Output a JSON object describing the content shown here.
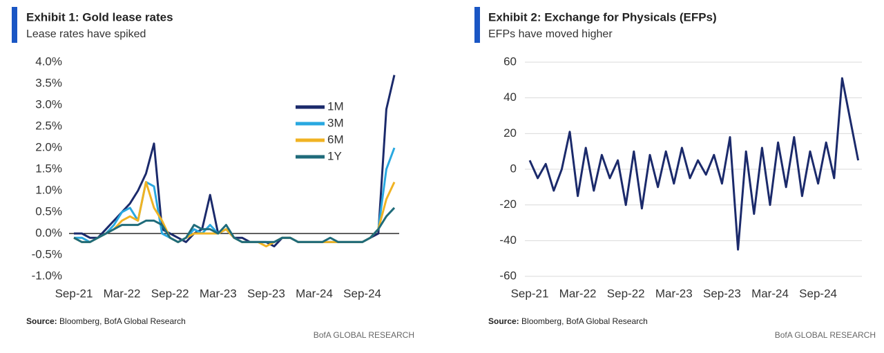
{
  "chart_data": [
    {
      "type": "line",
      "title": "Exhibit 1: Gold lease rates",
      "subtitle": "Lease rates have spiked",
      "x": [
        "Sep-21",
        "Oct-21",
        "Nov-21",
        "Dec-21",
        "Jan-22",
        "Feb-22",
        "Mar-22",
        "Apr-22",
        "May-22",
        "Jun-22",
        "Jul-22",
        "Aug-22",
        "Sep-22",
        "Oct-22",
        "Nov-22",
        "Dec-22",
        "Jan-23",
        "Feb-23",
        "Mar-23",
        "Apr-23",
        "May-23",
        "Jun-23",
        "Jul-23",
        "Aug-23",
        "Sep-23",
        "Oct-23",
        "Nov-23",
        "Dec-23",
        "Jan-24",
        "Feb-24",
        "Mar-24",
        "Apr-24",
        "May-24",
        "Jun-24",
        "Jul-24",
        "Aug-24",
        "Sep-24",
        "Oct-24",
        "Nov-24",
        "Dec-24",
        "Jan-25"
      ],
      "xticks": [
        "Sep-21",
        "Mar-22",
        "Sep-22",
        "Mar-23",
        "Sep-23",
        "Mar-24",
        "Sep-24"
      ],
      "series": [
        {
          "name": "1M",
          "color": "#1b2a6b",
          "values": [
            0,
            0,
            -0.1,
            -0.1,
            0.1,
            0.3,
            0.5,
            0.7,
            1.0,
            1.4,
            2.1,
            0.1,
            0,
            -0.1,
            -0.2,
            0,
            0.1,
            0.9,
            0,
            0.1,
            -0.1,
            -0.1,
            -0.2,
            -0.2,
            -0.2,
            -0.3,
            -0.1,
            -0.1,
            -0.2,
            -0.2,
            -0.2,
            -0.2,
            -0.2,
            -0.2,
            -0.2,
            -0.2,
            -0.2,
            -0.1,
            0,
            2.9,
            3.7
          ]
        },
        {
          "name": "3M",
          "color": "#29a8e0",
          "values": [
            -0.1,
            -0.1,
            -0.2,
            -0.1,
            0,
            0.2,
            0.5,
            0.6,
            0.3,
            1.2,
            1.1,
            0,
            -0.1,
            -0.2,
            -0.1,
            0.1,
            0,
            0.2,
            0,
            0.1,
            -0.1,
            -0.2,
            -0.2,
            -0.2,
            -0.2,
            -0.2,
            -0.1,
            -0.1,
            -0.2,
            -0.2,
            -0.2,
            -0.2,
            -0.2,
            -0.2,
            -0.2,
            -0.2,
            -0.2,
            -0.1,
            0.1,
            1.5,
            2.0
          ]
        },
        {
          "name": "6M",
          "color": "#f0b323",
          "values": [
            -0.1,
            -0.2,
            -0.2,
            -0.1,
            0,
            0.1,
            0.3,
            0.4,
            0.3,
            1.2,
            0.6,
            0.3,
            -0.1,
            -0.2,
            -0.1,
            0,
            0,
            0,
            0,
            0.1,
            -0.1,
            -0.2,
            -0.2,
            -0.2,
            -0.3,
            -0.2,
            -0.1,
            -0.1,
            -0.2,
            -0.2,
            -0.2,
            -0.2,
            -0.2,
            -0.2,
            -0.2,
            -0.2,
            -0.2,
            -0.1,
            0.1,
            0.8,
            1.2
          ]
        },
        {
          "name": "1Y",
          "color": "#1f6b7a",
          "values": [
            -0.1,
            -0.2,
            -0.2,
            -0.1,
            0,
            0.1,
            0.2,
            0.2,
            0.2,
            0.3,
            0.3,
            0.2,
            -0.1,
            -0.2,
            -0.1,
            0.2,
            0.1,
            0.1,
            0,
            0.2,
            -0.1,
            -0.2,
            -0.2,
            -0.2,
            -0.2,
            -0.2,
            -0.1,
            -0.1,
            -0.2,
            -0.2,
            -0.2,
            -0.2,
            -0.1,
            -0.2,
            -0.2,
            -0.2,
            -0.2,
            -0.1,
            0.1,
            0.4,
            0.6
          ]
        }
      ],
      "ylim": [
        -1,
        4
      ],
      "yticks": [
        {
          "value": -1,
          "label": "-1.0%"
        },
        {
          "value": -0.5,
          "label": "-0.5%"
        },
        {
          "value": 0,
          "label": "0.0%"
        },
        {
          "value": 0.5,
          "label": "0.5%"
        },
        {
          "value": 1,
          "label": "1.0%"
        },
        {
          "value": 1.5,
          "label": "1.5%"
        },
        {
          "value": 2,
          "label": "2.0%"
        },
        {
          "value": 2.5,
          "label": "2.5%"
        },
        {
          "value": 3,
          "label": "3.0%"
        },
        {
          "value": 3.5,
          "label": "3.5%"
        },
        {
          "value": 4,
          "label": "4.0%"
        }
      ],
      "grid": false,
      "zero_line": true,
      "legend": "top-right",
      "source_label": "Source:",
      "source": "Bloomberg, BofA Global Research",
      "footer": "BofA GLOBAL RESEARCH"
    },
    {
      "type": "line",
      "title": "Exhibit 2: Exchange for Physicals (EFPs)",
      "subtitle": "EFPs have moved higher",
      "x": [
        "Sep-21",
        "Oct-21",
        "Nov-21",
        "Dec-21",
        "Jan-22",
        "Feb-22",
        "Mar-22",
        "Apr-22",
        "May-22",
        "Jun-22",
        "Jul-22",
        "Aug-22",
        "Sep-22",
        "Oct-22",
        "Nov-22",
        "Dec-22",
        "Jan-23",
        "Feb-23",
        "Mar-23",
        "Apr-23",
        "May-23",
        "Jun-23",
        "Jul-23",
        "Aug-23",
        "Sep-23",
        "Oct-23",
        "Nov-23",
        "Dec-23",
        "Jan-24",
        "Feb-24",
        "Mar-24",
        "Apr-24",
        "May-24",
        "Jun-24",
        "Jul-24",
        "Aug-24",
        "Sep-24",
        "Oct-24",
        "Nov-24",
        "Dec-24",
        "Jan-25",
        "Feb-25"
      ],
      "xticks": [
        "Sep-21",
        "Mar-22",
        "Sep-22",
        "Mar-23",
        "Sep-23",
        "Mar-24",
        "Sep-24"
      ],
      "series": [
        {
          "color": "#1b2a6b",
          "values": [
            5,
            -5,
            3,
            -12,
            0,
            21,
            -15,
            12,
            -12,
            8,
            -5,
            5,
            -20,
            10,
            -22,
            8,
            -10,
            10,
            -8,
            12,
            -5,
            5,
            -3,
            8,
            -8,
            18,
            -45,
            10,
            -25,
            12,
            -20,
            15,
            -10,
            18,
            -15,
            10,
            -8,
            15,
            -5,
            51,
            28,
            5
          ]
        }
      ],
      "ylim": [
        -60,
        60
      ],
      "yticks": [
        -60,
        -40,
        -20,
        0,
        20,
        40,
        60
      ],
      "grid": true,
      "zero_line": false,
      "source_label": "Source:",
      "source": "Bloomberg, BofA Global Research",
      "footer": "BofA GLOBAL RESEARCH"
    }
  ]
}
